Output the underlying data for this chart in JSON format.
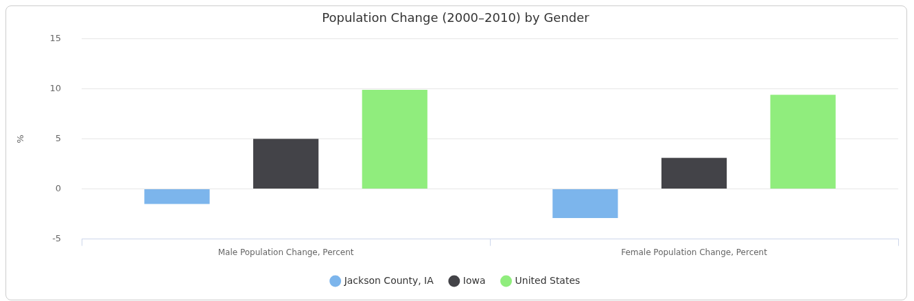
{
  "chart_data": {
    "type": "bar",
    "title": "Population Change (2000–2010) by Gender",
    "ylabel": "%",
    "categories": [
      "Male Population Change, Percent",
      "Female Population Change, Percent"
    ],
    "series": [
      {
        "name": "Jackson County, IA",
        "color": "#7cb5ec",
        "values": [
          -1.5,
          -2.9
        ]
      },
      {
        "name": "Iowa",
        "color": "#434348",
        "values": [
          5.0,
          3.1
        ]
      },
      {
        "name": "United States",
        "color": "#90ed7d",
        "values": [
          9.9,
          9.4
        ]
      }
    ],
    "ylim": [
      -5,
      15
    ],
    "yticks": [
      -5,
      0,
      5,
      10,
      15
    ],
    "grid": "y",
    "legend": "bottom"
  }
}
